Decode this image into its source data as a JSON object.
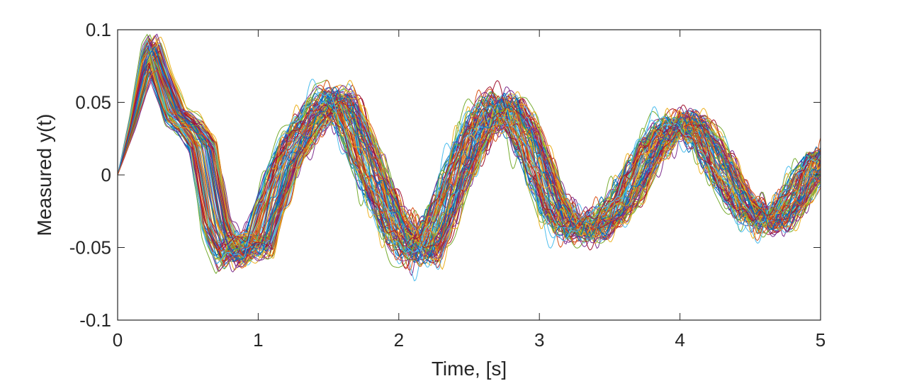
{
  "chart_data": {
    "type": "line",
    "title": "",
    "xlabel": "Time, [s]",
    "ylabel": "Measured y(t)",
    "xlim": [
      0,
      5
    ],
    "ylim": [
      -0.1,
      0.1
    ],
    "x_ticks": [
      0,
      1,
      2,
      3,
      4,
      5
    ],
    "x_tick_labels": [
      "0",
      "1",
      "2",
      "3",
      "4",
      "5"
    ],
    "y_ticks": [
      -0.1,
      -0.05,
      0,
      0.05,
      0.1
    ],
    "y_tick_labels": [
      "-0.1",
      "-0.05",
      "0",
      "0.05",
      "0.1"
    ],
    "grid": false,
    "legend": "none",
    "series_count": 100,
    "colors": [
      "#0072BD",
      "#D95319",
      "#EDB120",
      "#7E2F8E",
      "#77AC30",
      "#4DBEEE",
      "#A2142F"
    ],
    "x": [
      0,
      0.1,
      0.2,
      0.25,
      0.3,
      0.4,
      0.5,
      0.6,
      0.7,
      0.8,
      0.9,
      1.0,
      1.1,
      1.2,
      1.3,
      1.4,
      1.5,
      1.6,
      1.7,
      1.8,
      1.9,
      2.0,
      2.1,
      2.2,
      2.3,
      2.4,
      2.5,
      2.6,
      2.7,
      2.8,
      2.9,
      3.0,
      3.1,
      3.2,
      3.3,
      3.4,
      3.5,
      3.6,
      3.7,
      3.8,
      3.9,
      4.0,
      4.1,
      4.2,
      4.3,
      4.4,
      4.5,
      4.6,
      4.7,
      4.8,
      4.9,
      5.0
    ],
    "mean_response": [
      0,
      0.035,
      0.078,
      0.085,
      0.07,
      0.042,
      0.034,
      0.02,
      -0.035,
      -0.058,
      -0.048,
      -0.05,
      -0.018,
      0.01,
      0.028,
      0.04,
      0.052,
      0.05,
      0.028,
      0.002,
      -0.02,
      -0.04,
      -0.05,
      -0.052,
      -0.03,
      -0.005,
      0.018,
      0.038,
      0.048,
      0.044,
      0.028,
      0.005,
      -0.02,
      -0.035,
      -0.038,
      -0.036,
      -0.03,
      -0.018,
      0.0,
      0.018,
      0.03,
      0.036,
      0.034,
      0.022,
      0.004,
      -0.014,
      -0.026,
      -0.032,
      -0.03,
      -0.02,
      -0.004,
      0.012
    ],
    "spread": [
      0,
      0.002,
      0.004,
      0.004,
      0.005,
      0.006,
      0.006,
      0.008,
      0.01,
      0.012,
      0.012,
      0.013,
      0.016,
      0.018,
      0.02,
      0.02,
      0.02,
      0.022,
      0.024,
      0.024,
      0.025,
      0.026,
      0.026,
      0.025,
      0.025,
      0.026,
      0.026,
      0.025,
      0.024,
      0.024,
      0.024,
      0.025,
      0.024,
      0.022,
      0.02,
      0.02,
      0.02,
      0.02,
      0.02,
      0.02,
      0.02,
      0.02,
      0.02,
      0.02,
      0.02,
      0.02,
      0.02,
      0.02,
      0.02,
      0.02,
      0.02,
      0.02
    ]
  }
}
